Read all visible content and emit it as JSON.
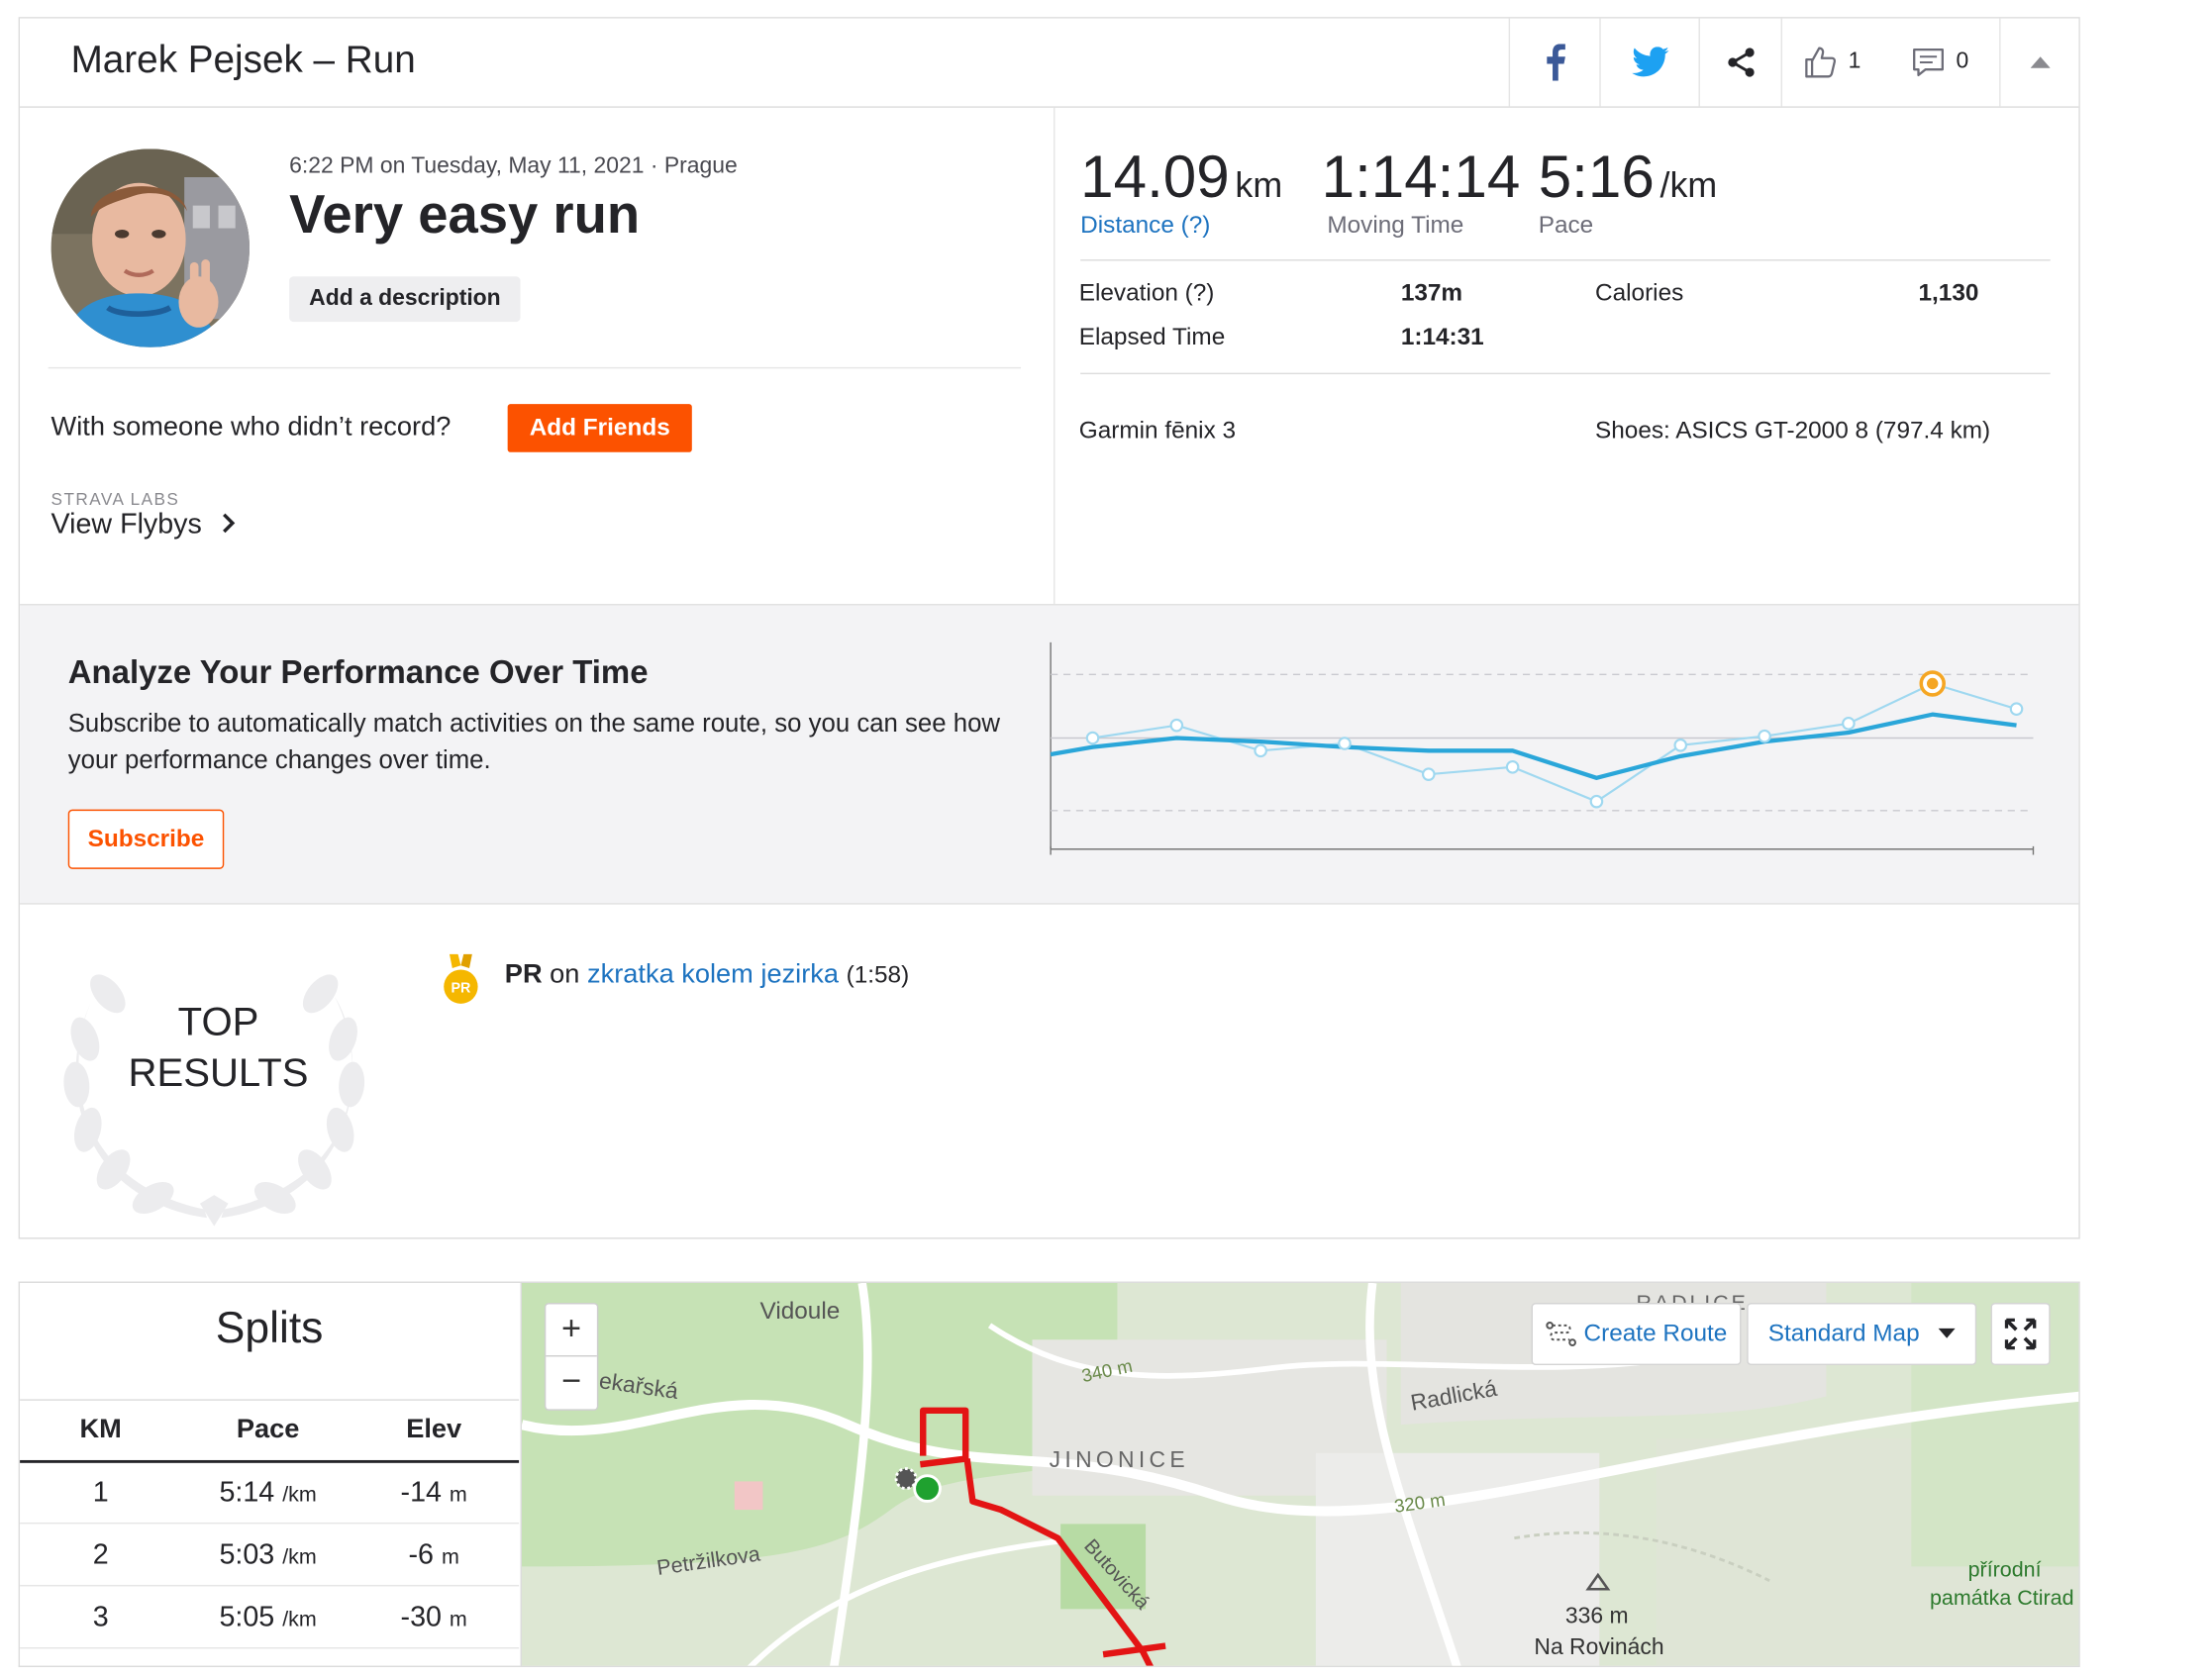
{
  "header": {
    "title": "Marek Pejsek – Run",
    "kudos_count": "1",
    "comments_count": "0"
  },
  "activity": {
    "datetime_location": "6:22 PM on Tuesday, May 11, 2021 · Prague",
    "name": "Very easy run",
    "add_description_label": "Add a description",
    "with_someone_text": "With someone who didn’t record?",
    "add_friends_label": "Add Friends",
    "labs_label": "STRAVA LABS",
    "view_flybys_label": "View Flybys"
  },
  "stats": {
    "distance_value": "14.09",
    "distance_unit": "km",
    "distance_label": "Distance (?)",
    "moving_time_value": "1:14:14",
    "moving_time_label": "Moving Time",
    "pace_value": "5:16",
    "pace_unit": "/km",
    "pace_label": "Pace",
    "elevation_label": "Elevation (?)",
    "elevation_value": "137m",
    "calories_label": "Calories",
    "calories_value": "1,130",
    "elapsed_label": "Elapsed Time",
    "elapsed_value": "1:14:31",
    "device": "Garmin fēnix 3",
    "shoes": "Shoes: ASICS GT-2000 8 (797.4 km)"
  },
  "analyze": {
    "heading": "Analyze Your Performance Over Time",
    "text": "Subscribe to automatically match activities on the same route, so you can see how your performance changes over time.",
    "subscribe_label": "Subscribe"
  },
  "chart_data": {
    "type": "line",
    "x": [
      1,
      2,
      3,
      4,
      5,
      6,
      7,
      8,
      9,
      10,
      11,
      12
    ],
    "series": [
      {
        "name": "",
        "values": [
          0.5,
          0.55,
          0.53,
          0.5,
          0.48,
          0.48,
          0.33,
          0.45,
          0.53,
          0.58,
          0.68,
          0.62
        ]
      },
      {
        "name": "",
        "values": [
          0.55,
          0.62,
          0.48,
          0.52,
          0.35,
          0.39,
          0.2,
          0.51,
          0.56,
          0.63,
          0.85,
          0.71
        ]
      }
    ],
    "highlight_index": 10,
    "title": "",
    "xlabel": "",
    "ylabel": "",
    "grid": true,
    "colors": {
      "trend": "#2aa6d9",
      "efforts": "#9fd8f0",
      "highlight": "#f5a623"
    }
  },
  "top_results": {
    "title_line1": "TOP",
    "title_line2": "RESULTS",
    "medal_label": "PR",
    "pr_label": "PR",
    "on_text": "on",
    "segment_name": "zkratka kolem jezirka",
    "segment_time": "(1:58)"
  },
  "splits": {
    "title": "Splits",
    "columns": [
      "KM",
      "Pace",
      "Elev"
    ],
    "rows": [
      {
        "km": "1",
        "pace": "5:14",
        "pace_unit": "/km",
        "elev": "-14",
        "elev_unit": "m"
      },
      {
        "km": "2",
        "pace": "5:03",
        "pace_unit": "/km",
        "elev": "-6",
        "elev_unit": "m"
      },
      {
        "km": "3",
        "pace": "5:05",
        "pace_unit": "/km",
        "elev": "-30",
        "elev_unit": "m"
      }
    ]
  },
  "map": {
    "zoom_in": "+",
    "zoom_out": "−",
    "create_route_label": "Create Route",
    "map_type_label": "Standard Map",
    "labels": {
      "vidoule": "Vidoule",
      "radlice": "RADLICE",
      "lekarska": "ekařská",
      "c340": "340 m",
      "radlicka": "Radlická",
      "jinonice": "JINONICE",
      "c320": "320 m",
      "petrzilkova": "Petržilkova",
      "butovicka": "Butovická",
      "peak_elev": "336 m",
      "peak_name": "Na Rovinách",
      "reserve1": "přírodní",
      "reserve2": "památka Ctirad"
    }
  }
}
